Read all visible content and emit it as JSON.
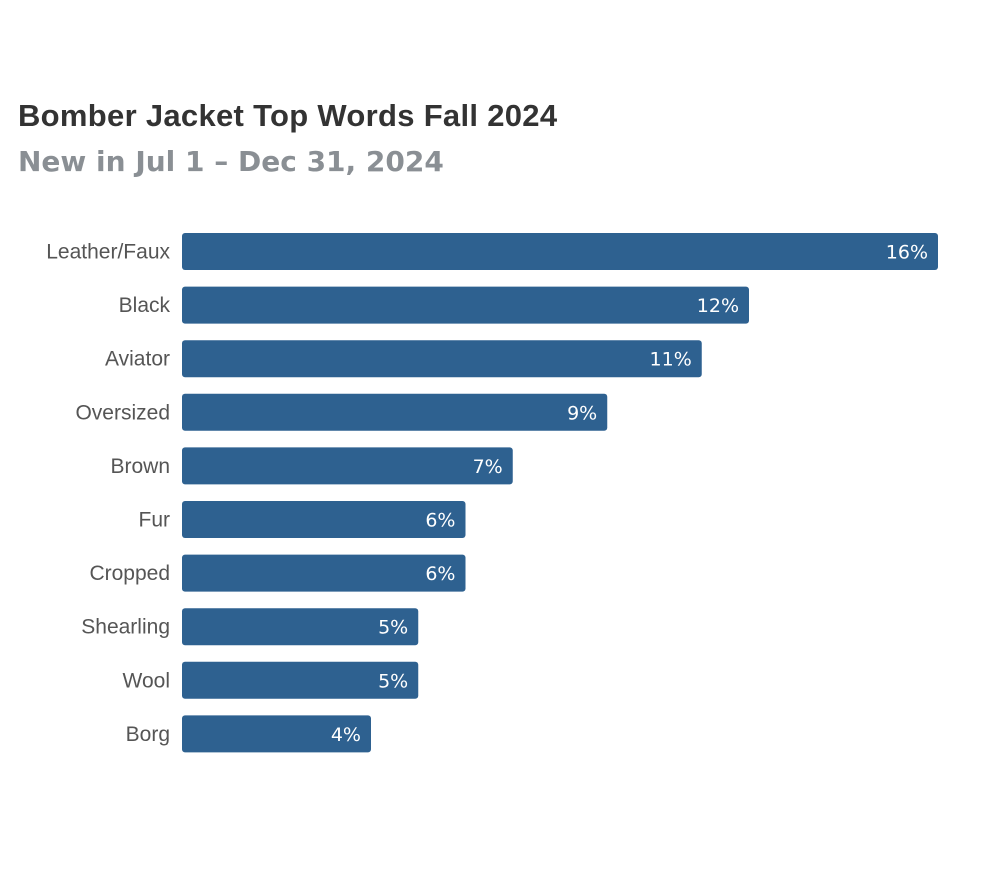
{
  "chart_data": {
    "type": "bar",
    "orientation": "horizontal",
    "title": "Bomber Jacket Top Words Fall 2024",
    "subtitle": "New in Jul 1 – Dec 31, 2024",
    "categories": [
      "Leather/Faux",
      "Black",
      "Aviator",
      "Oversized",
      "Brown",
      "Fur",
      "Cropped",
      "Shearling",
      "Wool",
      "Borg"
    ],
    "values": [
      16,
      12,
      11,
      9,
      7,
      6,
      6,
      5,
      5,
      4
    ],
    "value_labels": [
      "16%",
      "12%",
      "11%",
      "9%",
      "7%",
      "6%",
      "6%",
      "5%",
      "5%",
      "4%"
    ],
    "unit": "%",
    "xlim": [
      0,
      16
    ],
    "grid": false,
    "legend": "none",
    "bar_color": "#2e6190"
  }
}
